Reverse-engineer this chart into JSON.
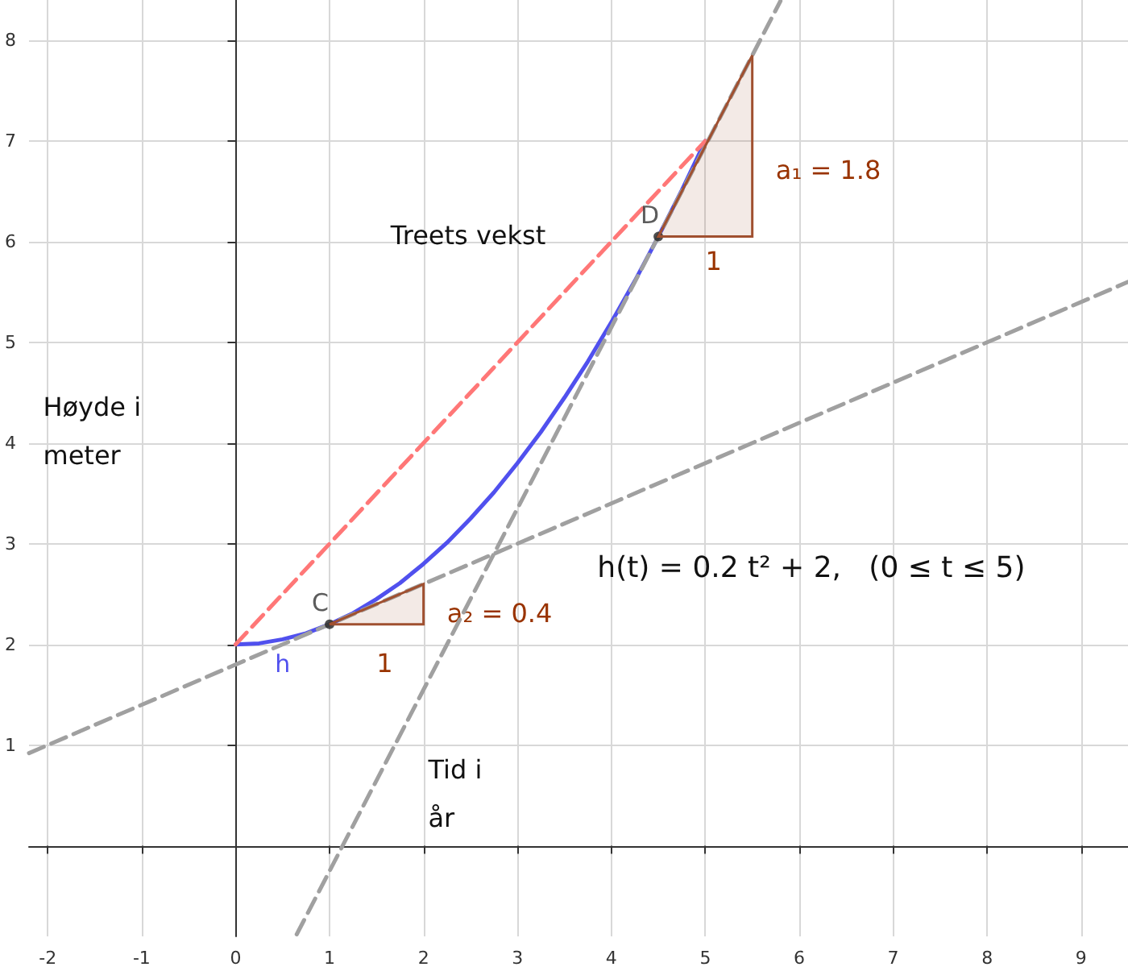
{
  "chart_data": {
    "type": "line",
    "title": "Treets vekst",
    "xlabel": "Tid i år",
    "ylabel": "Høyde i meter",
    "xlim": [
      -2.2,
      9.5
    ],
    "ylim": [
      -0.9,
      8.4
    ],
    "xticks": [
      -2,
      -1,
      0,
      1,
      2,
      3,
      4,
      5,
      6,
      7,
      8,
      9
    ],
    "yticks": [
      {
        "value": 0,
        "label": null
      },
      1,
      2,
      3,
      4,
      5,
      6,
      7,
      8
    ],
    "grid": true,
    "legend": false,
    "annotations": [
      "h(t) = 0.2 t² + 2,   (0 ≤ t ≤ 5)",
      "a₂ = 0.4",
      "1",
      "a₁ = 1.8",
      "1"
    ],
    "series": [
      {
        "name": "h",
        "color": "#5050ee",
        "marker": "none",
        "line_style": "solid",
        "x": [
          0,
          0.25,
          0.5,
          0.75,
          1,
          1.25,
          1.5,
          1.75,
          2,
          2.25,
          2.5,
          2.75,
          3,
          3.25,
          3.5,
          3.75,
          4,
          4.25,
          4.5,
          4.75,
          5
        ],
        "values": [
          2,
          2.01,
          2.05,
          2.11,
          2.2,
          2.31,
          2.45,
          2.61,
          2.8,
          3.01,
          3.25,
          3.51,
          3.8,
          4.11,
          4.45,
          4.81,
          5.2,
          5.61,
          6.05,
          6.51,
          7
        ]
      },
      {
        "color": "#ff7777",
        "marker": "none",
        "line_style": "dashed",
        "x": [
          0,
          5
        ],
        "values": [
          2,
          7
        ]
      },
      {
        "color": "#a0a0a0",
        "marker": "none",
        "line_style": "dashed",
        "x": [
          -2.2,
          9.5
        ],
        "values": [
          0.92,
          5.6
        ]
      },
      {
        "color": "#a0a0a0",
        "marker": "none",
        "line_style": "dashed",
        "x": [
          0.65,
          5.8
        ],
        "values": [
          -0.88,
          8.39
        ]
      },
      {
        "name": "C",
        "type": "scatter",
        "color": "#222222",
        "marker": "circle",
        "x": [
          1
        ],
        "values": [
          2.2
        ]
      },
      {
        "name": "D",
        "type": "scatter",
        "color": "#222222",
        "marker": "circle",
        "x": [
          4.5
        ],
        "values": [
          6.05
        ]
      }
    ]
  }
}
